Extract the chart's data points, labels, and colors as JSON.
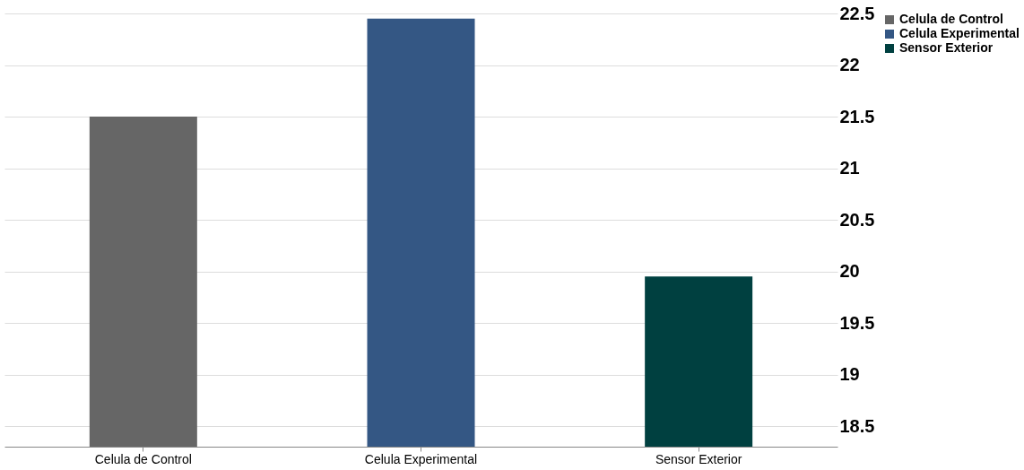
{
  "chart_data": {
    "type": "bar",
    "categories": [
      "Celula de Control",
      "Celula Experimental",
      "Sensor Exterior"
    ],
    "series": [
      {
        "name": "Celula de Control",
        "color": "#666666",
        "values": [
          21.5,
          null,
          null
        ]
      },
      {
        "name": "Celula Experimental",
        "color": "#345784",
        "values": [
          null,
          22.45,
          null
        ]
      },
      {
        "name": "Sensor Exterior",
        "color": "#004040",
        "values": [
          null,
          null,
          19.95
        ]
      }
    ],
    "ylim": [
      18.3,
      22.5
    ],
    "yticks": [
      18.5,
      19,
      19.5,
      20,
      20.5,
      21,
      21.5,
      22,
      22.5
    ],
    "grid": "y",
    "legend": "right"
  }
}
